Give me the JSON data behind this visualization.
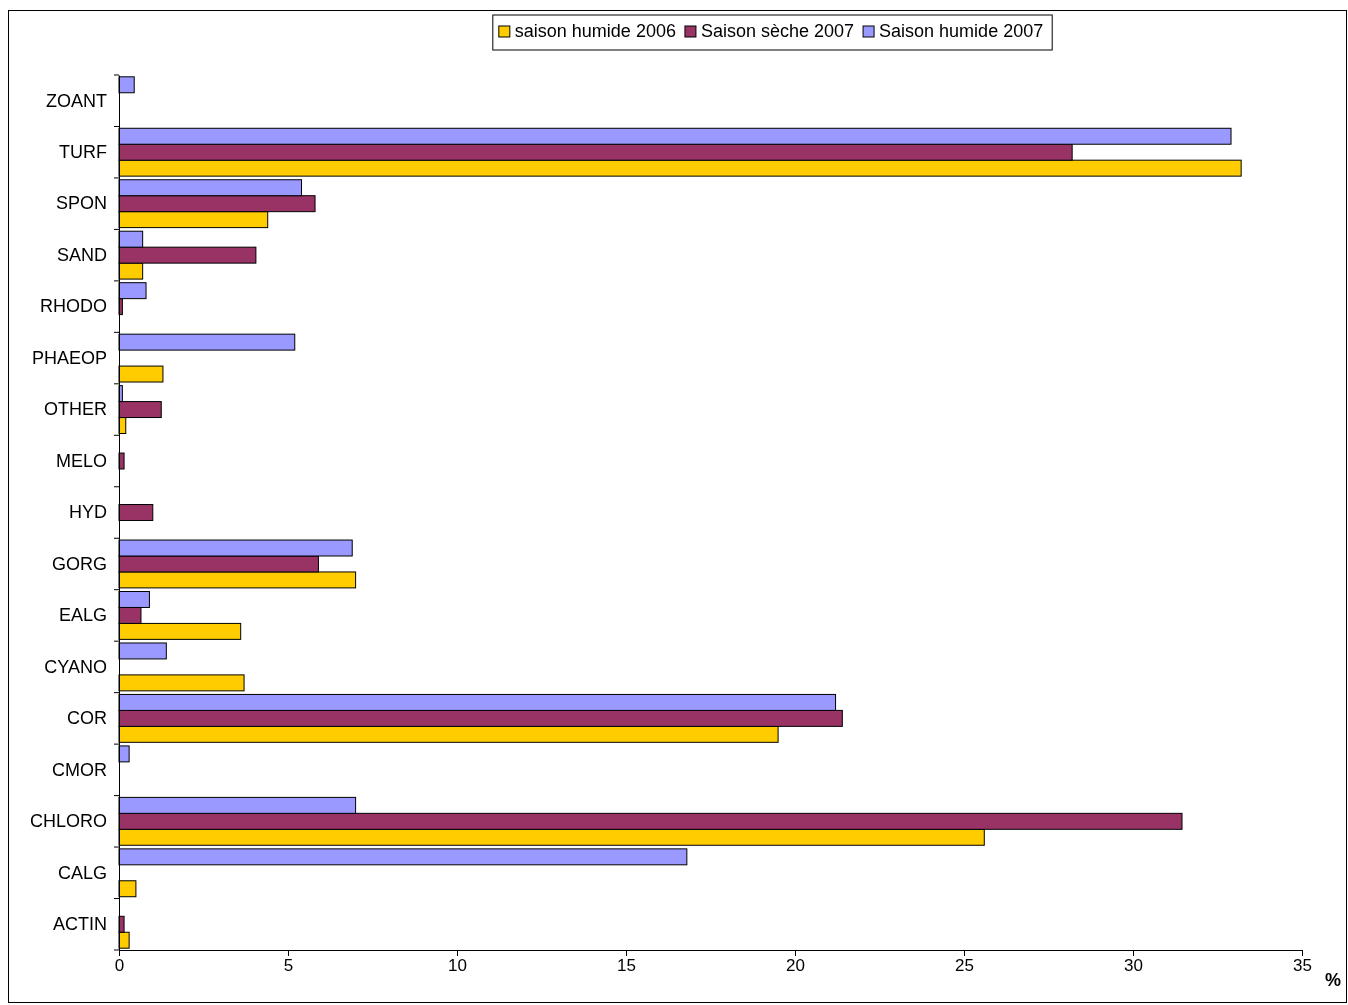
{
  "chart_data": {
    "type": "bar",
    "orientation": "horizontal",
    "xlabel": "%",
    "categories": [
      "ZOANT",
      "TURF",
      "SPON",
      "SAND",
      "RHODO",
      "PHAEOP",
      "OTHER",
      "MELO",
      "HYD",
      "GORG",
      "EALG",
      "CYANO",
      "COR",
      "CMOR",
      "CHLORO",
      "CALG",
      "ACTIN"
    ],
    "series": [
      {
        "name": "saison humide 2006",
        "color": "#ffcc00",
        "values": [
          null,
          33.2,
          4.4,
          0.7,
          null,
          1.3,
          0.2,
          null,
          null,
          7.0,
          3.6,
          3.7,
          19.5,
          null,
          25.6,
          0.5,
          0.3
        ]
      },
      {
        "name": "Saison sèche 2007",
        "color": "#993366",
        "values": [
          null,
          28.2,
          5.8,
          4.05,
          0.1,
          null,
          1.25,
          0.15,
          1.0,
          5.9,
          0.65,
          null,
          21.4,
          null,
          31.45,
          null,
          0.15
        ]
      },
      {
        "name": "Saison humide 2007",
        "color": "#9999ff",
        "values": [
          0.45,
          32.9,
          5.4,
          0.7,
          0.8,
          5.2,
          0.1,
          null,
          null,
          6.9,
          0.9,
          1.4,
          21.2,
          0.3,
          7.0,
          16.8,
          null
        ]
      }
    ],
    "xlim": [
      0,
      35
    ],
    "xticks": [
      0,
      5,
      10,
      15,
      20,
      25,
      30,
      35
    ],
    "grid": false,
    "legend": "top"
  }
}
